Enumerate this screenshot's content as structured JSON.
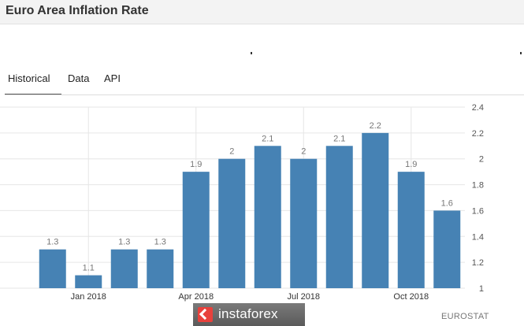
{
  "header": {
    "title": "Euro Area Inflation Rate"
  },
  "tabs": [
    {
      "label": "Historical",
      "active": true
    },
    {
      "label": "Data",
      "active": false
    },
    {
      "label": "API",
      "active": false
    }
  ],
  "source": "EUROSTAT",
  "watermark": {
    "text": "instaforex"
  },
  "colors": {
    "bar": "#4682b4",
    "grid": "#e6e6e6",
    "label": "#777777",
    "accent": "#e8413c"
  },
  "chart_data": {
    "type": "bar",
    "categories": [
      "Dec 2017",
      "Jan 2018",
      "Feb 2018",
      "Mar 2018",
      "Apr 2018",
      "May 2018",
      "Jun 2018",
      "Jul 2018",
      "Aug 2018",
      "Sep 2018",
      "Oct 2018",
      "Nov 2018"
    ],
    "values": [
      1.3,
      1.1,
      1.3,
      1.3,
      1.9,
      2.0,
      2.1,
      2.0,
      2.1,
      2.2,
      1.9,
      1.6
    ],
    "value_labels": [
      "1.3",
      "1.1",
      "1.3",
      "1.3",
      "1.9",
      "2",
      "2.1",
      "2",
      "2.1",
      "2.2",
      "1.9",
      "1.6"
    ],
    "x_tick_labels": [
      {
        "category": "Jan 2018",
        "label": "Jan 2018"
      },
      {
        "category": "Apr 2018",
        "label": "Apr 2018"
      },
      {
        "category": "Jul 2018",
        "label": "Jul 2018"
      },
      {
        "category": "Oct 2018",
        "label": "Oct 2018"
      }
    ],
    "y_ticks": [
      1,
      1.2,
      1.4,
      1.6,
      1.8,
      2,
      2.2,
      2.4
    ],
    "y_tick_labels": [
      "1",
      "1.2",
      "1.4",
      "1.6",
      "1.8",
      "2",
      "2.2",
      "2.4"
    ],
    "ylim": [
      1,
      2.4
    ],
    "y_axis_side": "right",
    "title": "",
    "xlabel": "",
    "ylabel": "",
    "grid": true,
    "legend": "none"
  }
}
